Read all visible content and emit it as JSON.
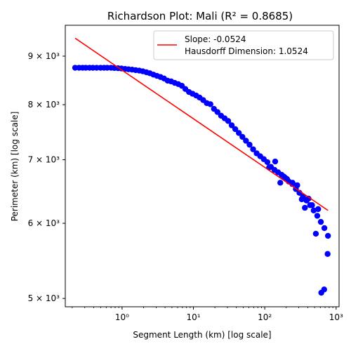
{
  "chart_data": {
    "type": "scatter",
    "title": "Richardson Plot: Mali (R² = 0.8685)",
    "xlabel": "Segment Length (km) [log scale]",
    "ylabel": "Perimeter (km) [log scale]",
    "xscale": "log",
    "yscale": "log",
    "xlim": [
      0.16,
      1100
    ],
    "ylim": [
      4900,
      9700
    ],
    "x_ticks": [
      {
        "value": 1,
        "label": "10⁰"
      },
      {
        "value": 10,
        "label": "10¹"
      },
      {
        "value": 100,
        "label": "10²"
      },
      {
        "value": 1000,
        "label": "10³"
      }
    ],
    "y_ticks": [
      {
        "value": 5000,
        "label": "5 × 10³"
      },
      {
        "value": 6000,
        "label": "6 × 10³"
      },
      {
        "value": 7000,
        "label": "7 × 10³"
      },
      {
        "value": 8000,
        "label": "8 × 10³"
      },
      {
        "value": 9000,
        "label": "9 × 10³"
      }
    ],
    "grid": false,
    "legend_position": "top-right",
    "legend": [
      {
        "text": "Slope: -0.0524",
        "color": "#ff0000"
      },
      {
        "text": "Hausdorff Dimension: 1.0524",
        "color": "#ff0000"
      }
    ],
    "series": [
      {
        "kind": "scatter",
        "color": "#0000ff",
        "points": [
          [
            0.22,
            8750
          ],
          [
            0.25,
            8750
          ],
          [
            0.28,
            8750
          ],
          [
            0.31,
            8750
          ],
          [
            0.35,
            8750
          ],
          [
            0.39,
            8750
          ],
          [
            0.44,
            8750
          ],
          [
            0.5,
            8750
          ],
          [
            0.56,
            8750
          ],
          [
            0.62,
            8750
          ],
          [
            0.7,
            8750
          ],
          [
            0.78,
            8745
          ],
          [
            0.88,
            8740
          ],
          [
            0.98,
            8735
          ],
          [
            1.1,
            8725
          ],
          [
            1.23,
            8718
          ],
          [
            1.38,
            8710
          ],
          [
            1.55,
            8700
          ],
          [
            1.74,
            8690
          ],
          [
            1.95,
            8675
          ],
          [
            2.19,
            8655
          ],
          [
            2.45,
            8635
          ],
          [
            2.75,
            8605
          ],
          [
            3.08,
            8580
          ],
          [
            3.46,
            8555
          ],
          [
            3.88,
            8525
          ],
          [
            4.35,
            8480
          ],
          [
            4.88,
            8465
          ],
          [
            5.47,
            8435
          ],
          [
            6.14,
            8410
          ],
          [
            6.89,
            8375
          ],
          [
            7.72,
            8310
          ],
          [
            8.66,
            8250
          ],
          [
            9.71,
            8215
          ],
          [
            10.9,
            8180
          ],
          [
            12.2,
            8140
          ],
          [
            13.7,
            8090
          ],
          [
            15.4,
            8030
          ],
          [
            17.3,
            8010
          ],
          [
            19.4,
            7920
          ],
          [
            21.7,
            7860
          ],
          [
            24.4,
            7790
          ],
          [
            27.4,
            7740
          ],
          [
            30.7,
            7690
          ],
          [
            34.4,
            7610
          ],
          [
            38.6,
            7540
          ],
          [
            43.3,
            7470
          ],
          [
            48.6,
            7400
          ],
          [
            54.5,
            7330
          ],
          [
            61.2,
            7260
          ],
          [
            68.6,
            7180
          ],
          [
            77,
            7110
          ],
          [
            86.4,
            7060
          ],
          [
            96.9,
            7010
          ],
          [
            108.7,
            6960
          ],
          [
            121.9,
            6880
          ],
          [
            136.8,
            6830
          ],
          [
            153.5,
            6790
          ],
          [
            172.2,
            6750
          ],
          [
            193.2,
            6700
          ],
          [
            216.8,
            6640
          ],
          [
            243.2,
            6600
          ],
          [
            272.9,
            6520
          ],
          [
            306.2,
            6460
          ],
          [
            343.5,
            6400
          ],
          [
            385.4,
            6340
          ],
          [
            432.4,
            6270
          ],
          [
            485.1,
            6190
          ],
          [
            544.3,
            6110
          ],
          [
            610.6,
            6020
          ],
          [
            685.1,
            5930
          ],
          [
            768.6,
            5820
          ],
          [
            115,
            6870
          ],
          [
            140,
            6970
          ],
          [
            165,
            6620
          ],
          [
            185,
            6720
          ],
          [
            205,
            6680
          ],
          [
            245,
            6620
          ],
          [
            285,
            6580
          ],
          [
            330,
            6360
          ],
          [
            365,
            6230
          ],
          [
            410,
            6370
          ],
          [
            460,
            6270
          ],
          [
            520,
            5850
          ],
          [
            560,
            6210
          ],
          [
            620,
            5070
          ],
          [
            680,
            5110
          ],
          [
            760,
            5570
          ]
        ]
      },
      {
        "kind": "line",
        "color": "#ff0000",
        "points": [
          [
            0.22,
            9400
          ],
          [
            770,
            6190
          ]
        ]
      }
    ]
  }
}
